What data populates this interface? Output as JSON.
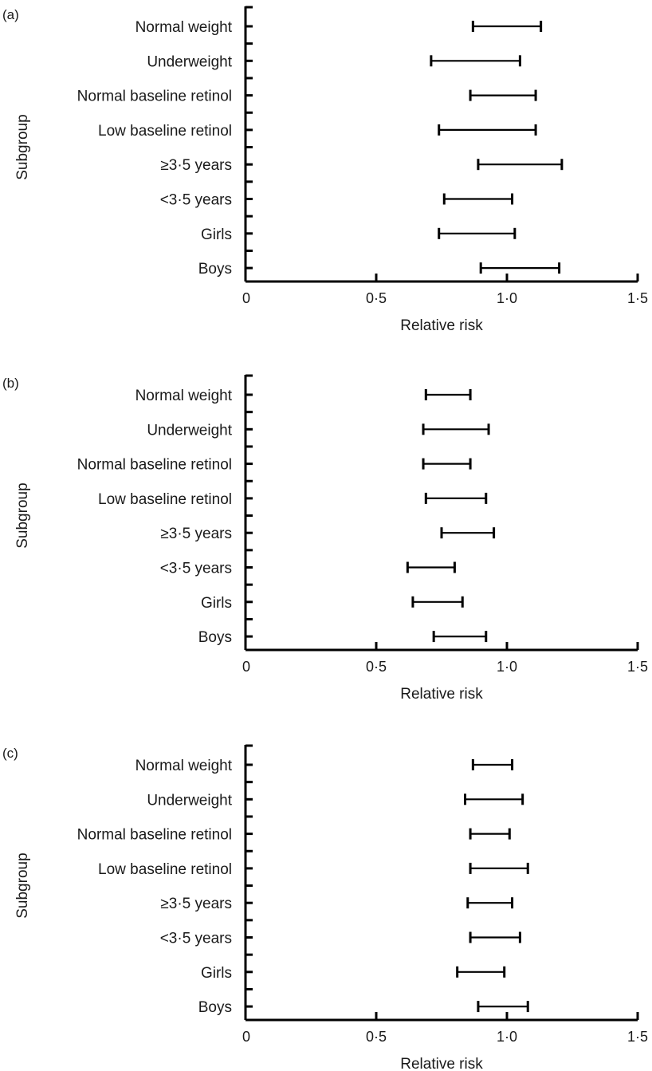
{
  "chart_data": [
    {
      "type": "forest",
      "panel_label": "(a)",
      "xlabel": "Relative risk",
      "ylabel": "Subgroup",
      "xlim": [
        0,
        1.5
      ],
      "x_ticks": [
        0,
        0.5,
        1.0,
        1.5
      ],
      "x_tick_labels": [
        "0",
        "0·5",
        "1·0",
        "1·5"
      ],
      "categories": [
        "Normal weight",
        "Underweight",
        "Normal baseline retinol",
        "Low baseline retinol",
        "≥3·5 years",
        "<3·5 years",
        "Girls",
        "Boys"
      ],
      "intervals": [
        [
          0.87,
          1.13
        ],
        [
          0.71,
          1.05
        ],
        [
          0.86,
          1.11
        ],
        [
          0.74,
          1.11
        ],
        [
          0.89,
          1.21
        ],
        [
          0.76,
          1.02
        ],
        [
          0.74,
          1.03
        ],
        [
          0.9,
          1.2
        ]
      ]
    },
    {
      "type": "forest",
      "panel_label": "(b)",
      "xlabel": "Relative risk",
      "ylabel": "Subgroup",
      "xlim": [
        0,
        1.5
      ],
      "x_ticks": [
        0,
        0.5,
        1.0,
        1.5
      ],
      "x_tick_labels": [
        "0",
        "0·5",
        "1·0",
        "1·5"
      ],
      "categories": [
        "Normal weight",
        "Underweight",
        "Normal baseline retinol",
        "Low baseline retinol",
        "≥3·5 years",
        "<3·5 years",
        "Girls",
        "Boys"
      ],
      "intervals": [
        [
          0.69,
          0.86
        ],
        [
          0.68,
          0.93
        ],
        [
          0.68,
          0.86
        ],
        [
          0.69,
          0.92
        ],
        [
          0.75,
          0.95
        ],
        [
          0.62,
          0.8
        ],
        [
          0.64,
          0.83
        ],
        [
          0.72,
          0.92
        ]
      ]
    },
    {
      "type": "forest",
      "panel_label": "(c)",
      "xlabel": "Relative risk",
      "ylabel": "Subgroup",
      "xlim": [
        0,
        1.5
      ],
      "x_ticks": [
        0,
        0.5,
        1.0,
        1.5
      ],
      "x_tick_labels": [
        "0",
        "0·5",
        "1·0",
        "1·5"
      ],
      "categories": [
        "Normal weight",
        "Underweight",
        "Normal baseline retinol",
        "Low baseline retinol",
        "≥3·5 years",
        "<3·5 years",
        "Girls",
        "Boys"
      ],
      "intervals": [
        [
          0.87,
          1.02
        ],
        [
          0.84,
          1.06
        ],
        [
          0.86,
          1.01
        ],
        [
          0.86,
          1.08
        ],
        [
          0.85,
          1.02
        ],
        [
          0.86,
          1.05
        ],
        [
          0.81,
          0.99
        ],
        [
          0.89,
          1.08
        ]
      ]
    }
  ]
}
